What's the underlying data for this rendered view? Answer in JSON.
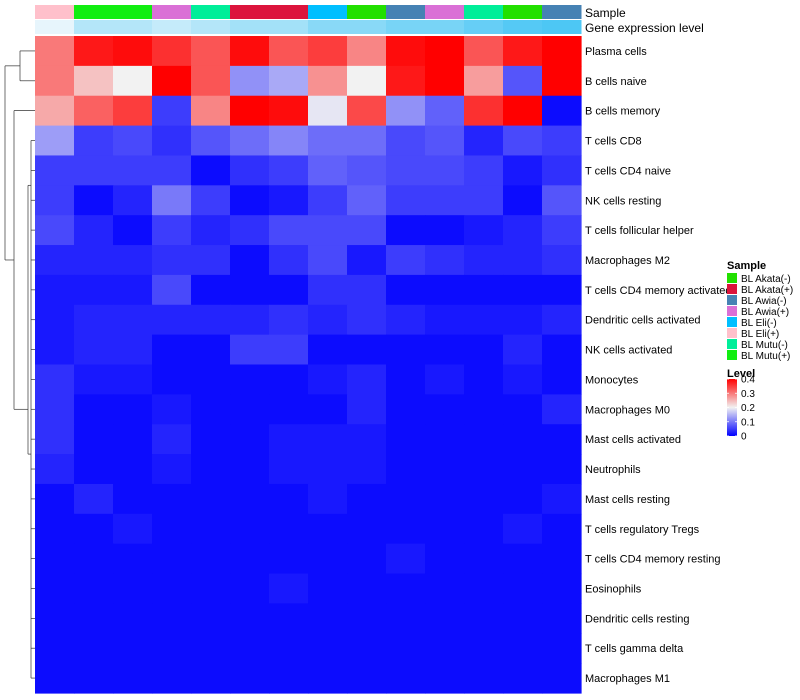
{
  "chart_data": {
    "type": "heatmap",
    "annotation_labels": [
      "Sample",
      "Gene expression level"
    ],
    "rows": [
      "Plasma cells",
      "B cells naive",
      "B cells memory",
      "T cells CD8",
      "T cells CD4 naive",
      "NK cells resting",
      "T cells follicular helper",
      "Macrophages M2",
      "T cells CD4 memory activated",
      "Dendritic cells activated",
      "NK cells activated",
      "Monocytes",
      "Macrophages M0",
      "Mast cells activated",
      "Neutrophils",
      "Mast cells resting",
      "T cells regulatory  Tregs",
      "T cells CD4 memory resting",
      "Eosinophils",
      "Dendritic cells resting",
      "T cells gamma delta",
      "Macrophages M1"
    ],
    "columns": [
      {
        "sample": "BL Eli(+)",
        "expression": 0.05
      },
      {
        "sample": "BL Mutu(+)",
        "expression": 0.35
      },
      {
        "sample": "BL Mutu(+)",
        "expression": 0.35
      },
      {
        "sample": "BL Awia(+)",
        "expression": 0.25
      },
      {
        "sample": "BL Mutu(-)",
        "expression": 0.35
      },
      {
        "sample": "BL Akata(+)",
        "expression": 0.45
      },
      {
        "sample": "BL Akata(+)",
        "expression": 0.45
      },
      {
        "sample": "BL Eli(-)",
        "expression": 0.6
      },
      {
        "sample": "BL Akata(-)",
        "expression": 0.6
      },
      {
        "sample": "BL Awia(-)",
        "expression": 0.7
      },
      {
        "sample": "BL Awia(+)",
        "expression": 0.7
      },
      {
        "sample": "BL Mutu(-)",
        "expression": 0.8
      },
      {
        "sample": "BL Akata(-)",
        "expression": 0.9
      },
      {
        "sample": "BL Awia(-)",
        "expression": 0.95
      }
    ],
    "values": [
      [
        0.3,
        0.38,
        0.39,
        0.36,
        0.33,
        0.39,
        0.33,
        0.35,
        0.29,
        0.39,
        0.4,
        0.33,
        0.38,
        0.41
      ],
      [
        0.3,
        0.24,
        0.2,
        0.4,
        0.33,
        0.12,
        0.14,
        0.28,
        0.2,
        0.38,
        0.4,
        0.27,
        0.07,
        0.4
      ],
      [
        0.26,
        0.32,
        0.35,
        0.05,
        0.29,
        0.4,
        0.39,
        0.19,
        0.34,
        0.12,
        0.08,
        0.36,
        0.4,
        0.01
      ],
      [
        0.13,
        0.05,
        0.06,
        0.04,
        0.07,
        0.09,
        0.11,
        0.09,
        0.09,
        0.06,
        0.07,
        0.03,
        0.06,
        0.05
      ],
      [
        0.05,
        0.05,
        0.05,
        0.05,
        0.01,
        0.04,
        0.05,
        0.08,
        0.07,
        0.06,
        0.06,
        0.05,
        0.02,
        0.04
      ],
      [
        0.05,
        0.01,
        0.03,
        0.1,
        0.05,
        0.01,
        0.02,
        0.05,
        0.08,
        0.05,
        0.05,
        0.05,
        0.01,
        0.07
      ],
      [
        0.06,
        0.03,
        0.01,
        0.05,
        0.03,
        0.04,
        0.06,
        0.06,
        0.06,
        0.01,
        0.01,
        0.02,
        0.03,
        0.05
      ],
      [
        0.03,
        0.03,
        0.03,
        0.04,
        0.04,
        0.01,
        0.04,
        0.06,
        0.02,
        0.05,
        0.04,
        0.03,
        0.03,
        0.04
      ],
      [
        0.02,
        0.02,
        0.02,
        0.06,
        0.01,
        0.01,
        0.01,
        0.04,
        0.04,
        0.01,
        0.01,
        0.01,
        0.01,
        0.01
      ],
      [
        0.02,
        0.03,
        0.03,
        0.03,
        0.03,
        0.03,
        0.04,
        0.03,
        0.04,
        0.03,
        0.02,
        0.02,
        0.02,
        0.03
      ],
      [
        0.02,
        0.03,
        0.03,
        0.01,
        0.01,
        0.05,
        0.05,
        0.01,
        0.01,
        0.01,
        0.01,
        0.01,
        0.03,
        0.01
      ],
      [
        0.04,
        0.02,
        0.02,
        0.01,
        0.01,
        0.01,
        0.01,
        0.02,
        0.03,
        0.01,
        0.02,
        0.01,
        0.02,
        0.01
      ],
      [
        0.04,
        0.01,
        0.01,
        0.02,
        0.01,
        0.01,
        0.01,
        0.01,
        0.03,
        0.01,
        0.01,
        0.01,
        0.01,
        0.03
      ],
      [
        0.04,
        0.01,
        0.01,
        0.03,
        0.01,
        0.01,
        0.02,
        0.02,
        0.02,
        0.01,
        0.01,
        0.01,
        0.01,
        0.01
      ],
      [
        0.03,
        0.01,
        0.01,
        0.02,
        0.01,
        0.01,
        0.02,
        0.02,
        0.02,
        0.01,
        0.01,
        0.01,
        0.01,
        0.01
      ],
      [
        0.01,
        0.03,
        0.01,
        0.01,
        0.01,
        0.01,
        0.01,
        0.02,
        0.01,
        0.01,
        0.01,
        0.01,
        0.01,
        0.02
      ],
      [
        0.01,
        0.01,
        0.02,
        0.01,
        0.01,
        0.01,
        0.01,
        0.01,
        0.01,
        0.01,
        0.01,
        0.01,
        0.02,
        0.01
      ],
      [
        0.01,
        0.01,
        0.01,
        0.01,
        0.01,
        0.01,
        0.01,
        0.01,
        0.01,
        0.02,
        0.01,
        0.01,
        0.01,
        0.01
      ],
      [
        0.01,
        0.01,
        0.01,
        0.01,
        0.01,
        0.01,
        0.02,
        0.01,
        0.01,
        0.01,
        0.01,
        0.01,
        0.01,
        0.01
      ],
      [
        0.01,
        0.01,
        0.01,
        0.01,
        0.01,
        0.01,
        0.01,
        0.01,
        0.01,
        0.01,
        0.01,
        0.01,
        0.01,
        0.01
      ],
      [
        0.01,
        0.01,
        0.01,
        0.01,
        0.01,
        0.01,
        0.01,
        0.01,
        0.01,
        0.01,
        0.01,
        0.01,
        0.01,
        0.01
      ],
      [
        0.01,
        0.01,
        0.01,
        0.01,
        0.01,
        0.01,
        0.01,
        0.01,
        0.01,
        0.01,
        0.01,
        0.01,
        0.01,
        0.01
      ]
    ],
    "color_scale": {
      "stops": [
        {
          "value": 0,
          "color": "#0000FF"
        },
        {
          "value": 0.2,
          "color": "#F2F2F2"
        },
        {
          "value": 0.4,
          "color": "#FF0000"
        }
      ],
      "range": [
        0,
        0.4
      ]
    },
    "legend_sample": {
      "title": "Sample",
      "entries": [
        {
          "label": "BL Akata(-)",
          "color": "#22E000"
        },
        {
          "label": "BL Akata(+)",
          "color": "#DC143C"
        },
        {
          "label": "BL Awia(-)",
          "color": "#4682B4"
        },
        {
          "label": "BL Awia(+)",
          "color": "#DA70D6"
        },
        {
          "label": "BL Eli(-)",
          "color": "#00BFFF"
        },
        {
          "label": "BL Eli(+)",
          "color": "#FFC0CB"
        },
        {
          "label": "BL Mutu(-)",
          "color": "#00EE99"
        },
        {
          "label": "BL Mutu(+)",
          "color": "#11EE11"
        }
      ]
    },
    "legend_level": {
      "title": "Level",
      "ticks": [
        "0",
        "0.1",
        "0.2",
        "0.3",
        "0.4"
      ],
      "tick_values": [
        0,
        0.1,
        0.2,
        0.3,
        0.4
      ]
    },
    "expression_color_scale": {
      "stops": [
        {
          "value": 0,
          "color": "#F0F8FC"
        },
        {
          "value": 1,
          "color": "#44C4F4"
        }
      ]
    },
    "dendrogram": "row clustering tree on left side",
    "legend_placement": "right"
  }
}
